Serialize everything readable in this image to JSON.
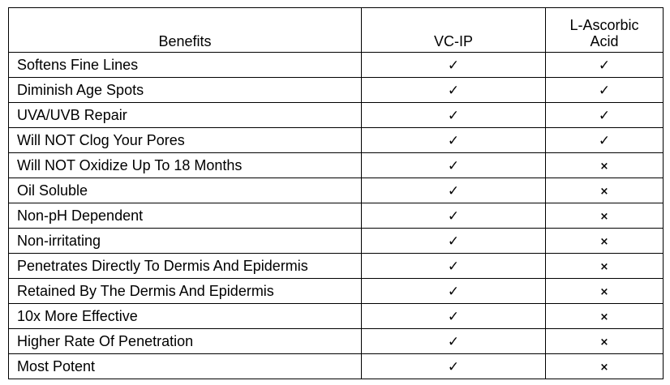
{
  "table": {
    "headers": {
      "benefits": "Benefits",
      "vcip": "VC-IP",
      "ascorbic_line1": "L-Ascorbic",
      "ascorbic_line2": "Acid"
    },
    "rows": [
      {
        "benefit": "Softens Fine Lines",
        "vcip": "✓",
        "ascorbic": "✓"
      },
      {
        "benefit": "Diminish Age Spots",
        "vcip": "✓",
        "ascorbic": "✓"
      },
      {
        "benefit": "UVA/UVB Repair",
        "vcip": "✓",
        "ascorbic": "✓"
      },
      {
        "benefit": "Will NOT Clog Your Pores",
        "vcip": "✓",
        "ascorbic": "✓"
      },
      {
        "benefit": "Will NOT Oxidize Up To 18 Months",
        "vcip": "✓",
        "ascorbic": "×"
      },
      {
        "benefit": "Oil Soluble",
        "vcip": "✓",
        "ascorbic": "×"
      },
      {
        "benefit": "Non-pH Dependent",
        "vcip": "✓",
        "ascorbic": "×"
      },
      {
        "benefit": "Non-irritating",
        "vcip": "✓",
        "ascorbic": "×"
      },
      {
        "benefit": "Penetrates Directly To Dermis And Epidermis",
        "vcip": "✓",
        "ascorbic": "×"
      },
      {
        "benefit": "Retained By The Dermis And Epidermis",
        "vcip": "✓",
        "ascorbic": "×"
      },
      {
        "benefit": "10x More Effective",
        "vcip": "✓",
        "ascorbic": "×"
      },
      {
        "benefit": "Higher Rate Of Penetration",
        "vcip": "✓",
        "ascorbic": "×"
      },
      {
        "benefit": "Most Potent",
        "vcip": "✓",
        "ascorbic": "×"
      }
    ]
  }
}
